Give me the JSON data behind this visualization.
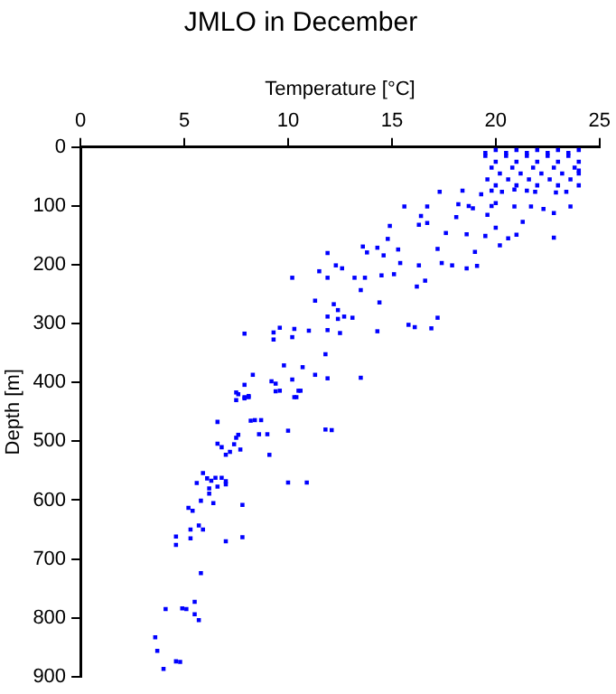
{
  "chart_data": {
    "type": "scatter",
    "title": "JMLO in December",
    "xlabel": "Temperature [°C]",
    "ylabel": "Depth [m]",
    "xlim": [
      0,
      25
    ],
    "xticks": [
      0,
      5,
      10,
      15,
      20,
      25
    ],
    "ylim": [
      900,
      0
    ],
    "yticks": [
      0,
      100,
      200,
      300,
      400,
      500,
      600,
      700,
      800,
      900
    ],
    "grid": false,
    "legend": false,
    "marker": "square",
    "color": "#0000ff",
    "x": [
      20,
      21,
      22,
      23,
      24,
      19.5,
      20.5,
      21.5,
      22.5,
      23.5,
      20,
      21,
      22,
      23,
      24,
      19.8,
      20.8,
      21.8,
      22.8,
      23.8,
      20.2,
      21.2,
      22.2,
      23.2,
      24,
      19.6,
      20.6,
      21.6,
      22.6,
      23.6,
      20,
      21,
      22,
      23,
      24,
      19.5,
      20.5,
      21.5,
      22.5,
      23.5,
      24,
      17.3,
      15.6,
      18.4,
      18.7,
      14.9,
      16.4,
      16.7,
      16.3,
      14.8,
      13.6,
      13.8,
      14.3,
      14.6,
      15.3,
      11.9,
      12.3,
      11.5,
      11.9,
      10.2,
      12.6,
      13.2,
      13.5,
      13.7,
      14.5,
      15.1,
      15.4,
      16.3,
      16.2,
      16.6,
      17.4,
      17.9,
      18.6,
      19.1,
      19.0,
      17.6,
      17.2,
      18.6,
      19.5,
      20.0,
      20.2,
      20.6,
      21.0,
      21.3,
      22.8,
      11.3,
      12.2,
      12.4,
      13.1,
      14.4,
      15.8,
      16.1,
      16.9,
      17.2,
      14.3,
      11.9,
      12.4,
      12.7,
      11.9,
      12.5,
      7.9,
      9.3,
      9.6,
      10.3,
      10.2,
      11.0,
      9.3,
      9.8,
      10.7,
      8.3,
      10.2,
      11.3,
      11.9,
      11.8,
      13.5,
      9.2,
      9.4,
      7.9,
      9.4,
      10.5,
      10.3,
      8.1,
      7.9,
      7.6,
      7.5,
      19.3,
      19.8,
      20.3,
      20.9,
      21.5,
      21.9,
      22.9,
      23.4,
      19.8,
      20.0,
      20.9,
      21.7,
      22.3,
      22.8,
      23.6,
      19.6,
      18.2,
      18.9,
      18.1,
      16.7,
      7.5,
      7.9,
      8.1,
      9.6,
      10.6,
      10.4,
      6.6,
      8.2,
      8.4,
      8.7,
      8.6,
      9.0,
      10.0,
      11.8,
      12.1,
      6.6,
      6.8,
      7.2,
      7.4,
      7.5,
      7.6,
      7.7,
      7.0,
      9.1,
      5.9,
      6.1,
      6.5,
      6.8,
      7.0,
      5.6,
      6.3,
      7.0,
      6.2,
      6.6,
      6.2,
      5.8,
      6.4,
      7.8,
      10.0,
      10.9,
      5.2,
      5.4,
      5.7,
      5.9,
      5.3,
      4.6,
      5.3,
      4.6,
      7.0,
      7.8,
      5.8,
      5.5,
      4.1,
      4.9,
      5.1,
      5.5,
      5.7,
      3.6,
      3.7,
      4.6,
      4.8,
      4.0
    ],
    "values": [
      5,
      5,
      5,
      5,
      5,
      15,
      15,
      15,
      15,
      15,
      25,
      25,
      25,
      25,
      25,
      35,
      35,
      35,
      35,
      35,
      45,
      45,
      45,
      45,
      45,
      55,
      55,
      55,
      55,
      55,
      65,
      65,
      65,
      65,
      65,
      10,
      10,
      10,
      10,
      10,
      40,
      76,
      101,
      74,
      100,
      134,
      117,
      129,
      132,
      156,
      169,
      179,
      171,
      184,
      174,
      180,
      201,
      211,
      222,
      222,
      206,
      222,
      243,
      222,
      218,
      216,
      197,
      201,
      237,
      227,
      197,
      201,
      206,
      202,
      178,
      146,
      173,
      148,
      151,
      137,
      167,
      155,
      149,
      127,
      154,
      261,
      267,
      277,
      290,
      264,
      302,
      306,
      308,
      290,
      313,
      288,
      292,
      288,
      311,
      316,
      317,
      315,
      307,
      309,
      323,
      312,
      327,
      371,
      374,
      387,
      395,
      387,
      393,
      352,
      392,
      398,
      402,
      404,
      415,
      414,
      425,
      425,
      427,
      420,
      430,
      80,
      74,
      76,
      72,
      74,
      76,
      77,
      76,
      100,
      95,
      101,
      101,
      105,
      112,
      101,
      115,
      97,
      104,
      119,
      101,
      417,
      425,
      423,
      414,
      414,
      425,
      467,
      465,
      464,
      464,
      488,
      488,
      482,
      480,
      481,
      504,
      510,
      518,
      505,
      494,
      489,
      514,
      523,
      523,
      554,
      563,
      562,
      562,
      568,
      571,
      567,
      573,
      580,
      577,
      589,
      601,
      605,
      608,
      570,
      570,
      613,
      618,
      643,
      650,
      650,
      662,
      665,
      676,
      670,
      663,
      724,
      773,
      785,
      784,
      785,
      794,
      804,
      833,
      856,
      874,
      875,
      887
    ]
  }
}
